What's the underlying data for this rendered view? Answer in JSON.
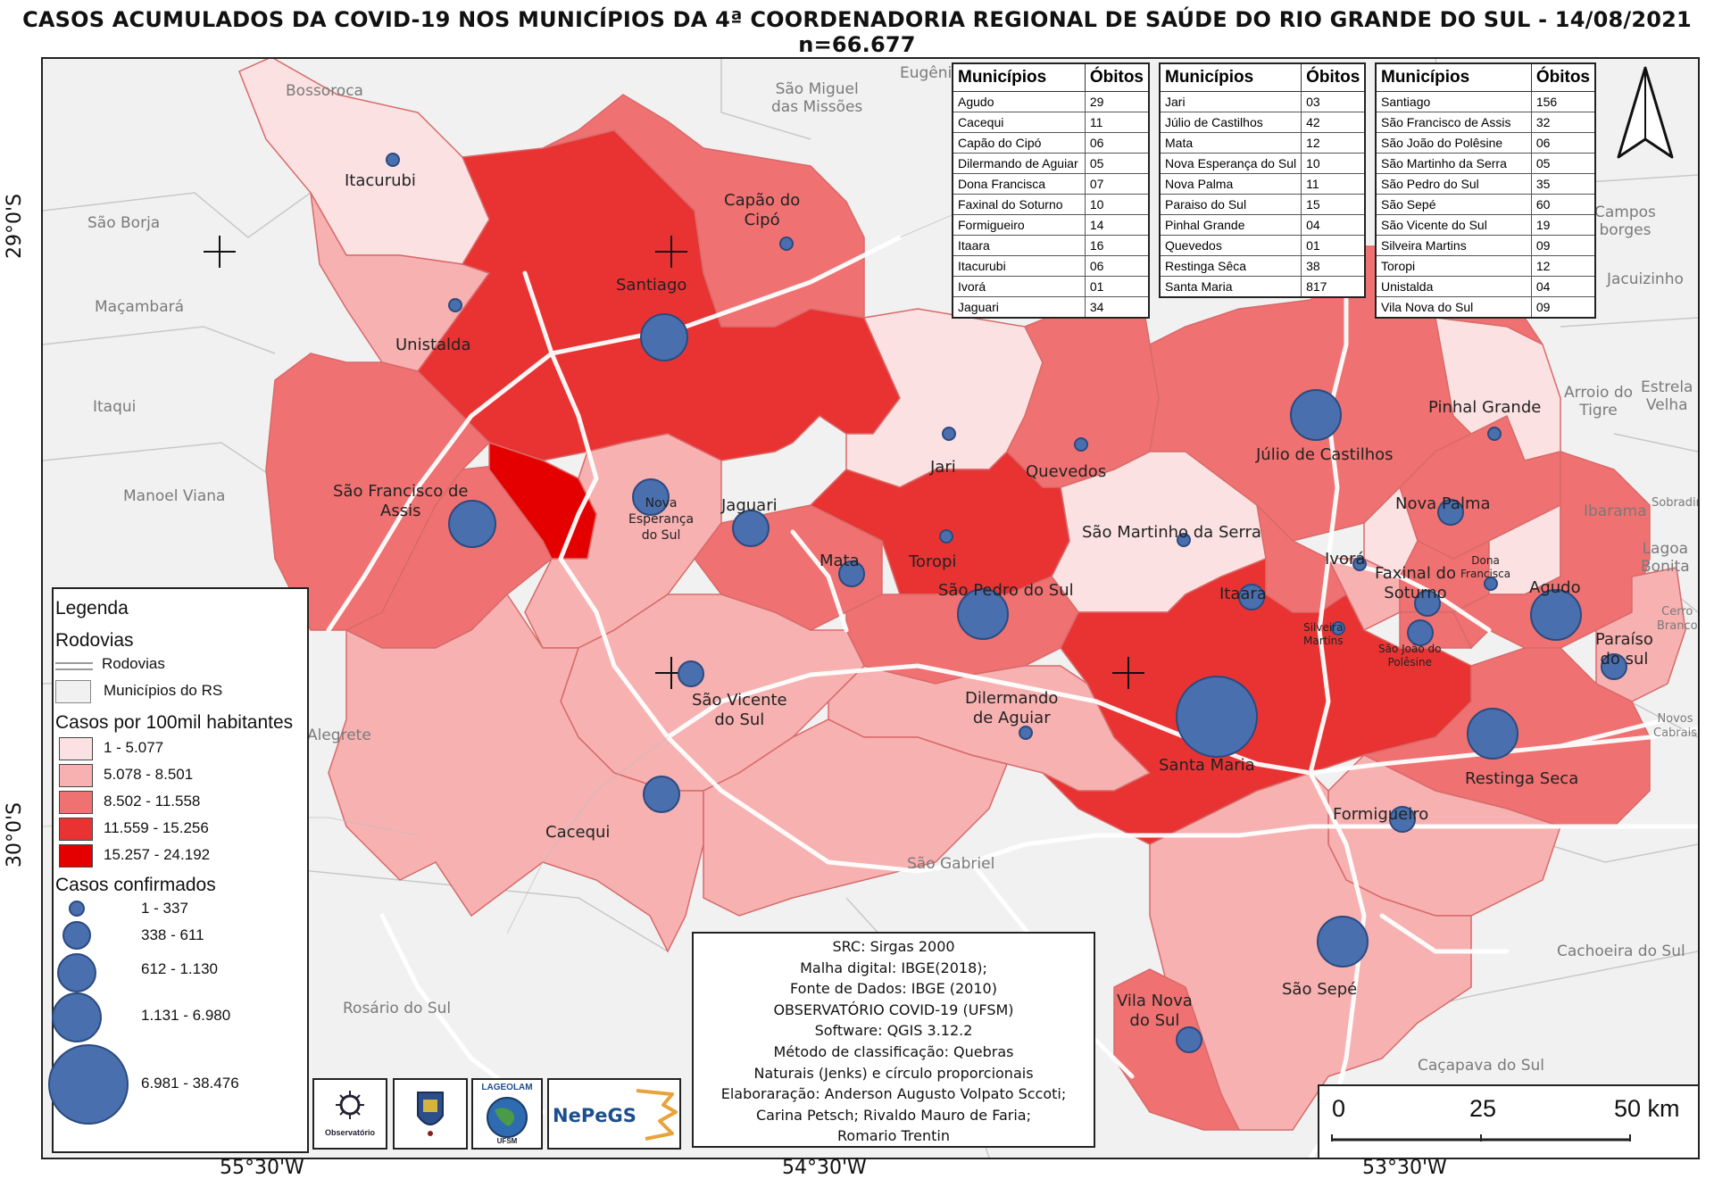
{
  "title": "CASOS ACUMULADOS DA COVID-19 NOS MUNICÍPIOS DA 4ª COORDENADORIA REGIONAL DE SAÚDE DO RIO GRANDE DO SUL - 14/08/2021 n=66.677",
  "tables": [
    {
      "header": [
        "Municípios",
        "Óbitos"
      ],
      "rows": [
        [
          "Agudo",
          "29"
        ],
        [
          "Cacequi",
          "11"
        ],
        [
          "Capão do Cipó",
          "06"
        ],
        [
          "Dilermando de Aguiar",
          "05"
        ],
        [
          "Dona Francisca",
          "07"
        ],
        [
          "Faxinal do Soturno",
          "10"
        ],
        [
          "Formigueiro",
          "14"
        ],
        [
          "Itaara",
          "16"
        ],
        [
          "Itacurubi",
          "06"
        ],
        [
          "Ivorá",
          "01"
        ],
        [
          "Jaguari",
          "34"
        ]
      ]
    },
    {
      "header": [
        "Municípios",
        "Óbitos"
      ],
      "rows": [
        [
          "Jari",
          "03"
        ],
        [
          "Júlio de Castilhos",
          "42"
        ],
        [
          "Mata",
          "12"
        ],
        [
          "Nova Esperança do Sul",
          "10"
        ],
        [
          "Nova Palma",
          "11"
        ],
        [
          "Paraiso do Sul",
          "15"
        ],
        [
          "Pinhal Grande",
          "04"
        ],
        [
          "Quevedos",
          "01"
        ],
        [
          "Restinga Sêca",
          "38"
        ],
        [
          "Santa Maria",
          "817"
        ]
      ]
    },
    {
      "header": [
        "Municípios",
        "Óbitos"
      ],
      "rows": [
        [
          "Santiago",
          "156"
        ],
        [
          "São Francisco de Assis",
          "32"
        ],
        [
          "São João do Polêsine",
          "06"
        ],
        [
          "São Martinho da Serra",
          "05"
        ],
        [
          "São Pedro do Sul",
          "35"
        ],
        [
          "São Sepé",
          "60"
        ],
        [
          "São Vicente do Sul",
          "19"
        ],
        [
          "Silveira Martins",
          "09"
        ],
        [
          "Toropi",
          "12"
        ],
        [
          "Unistalda",
          "04"
        ],
        [
          "Vila Nova do Sul",
          "09"
        ]
      ]
    }
  ],
  "legend": {
    "title": "Legenda",
    "roads_heading": "Rodovias",
    "roads_item": "Rodovias",
    "municipalities_item": "Municípios do RS",
    "rate_heading": "Casos por 100mil habitantes",
    "rate_classes": [
      {
        "label": "1 - 5.077",
        "color": "#fbe1e1"
      },
      {
        "label": "5.078 - 8.501",
        "color": "#f7b1b1"
      },
      {
        "label": "8.502 - 11.558",
        "color": "#f07171"
      },
      {
        "label": "11.559 - 15.256",
        "color": "#e93333"
      },
      {
        "label": "15.257 - 24.192",
        "color": "#e50000"
      }
    ],
    "cases_heading": "Casos confirmados",
    "case_classes": [
      "1 - 337",
      "338 - 611",
      "612 - 1.130",
      "1.131 - 6.980",
      "6.981 - 38.476"
    ]
  },
  "info": [
    "SRC: Sirgas 2000",
    "Malha digital: IBGE(2018);",
    "Fonte de Dados: IBGE (2010)",
    "OBSERVATÓRIO COVID-19 (UFSM)",
    "Software: QGIS 3.12.2",
    "Método de classificação: Quebras",
    "Naturais (Jenks) e círculo proporcionais",
    "Elaboraração: Anderson Augusto Volpato Sccoti;",
    "Carina Petsch; Rivaldo Mauro de Faria;",
    "Romario Trentin"
  ],
  "scale": {
    "labels": [
      "0",
      "25",
      "50 km"
    ]
  },
  "coords": {
    "lat": [
      "29°0'S",
      "30°0'S"
    ],
    "lon": [
      "55°30'W",
      "54°30'W",
      "53°30'W"
    ]
  },
  "logos": {
    "obs": "Observatório",
    "nepegs": "NePeGS",
    "lageolam": "LAGEOLAM",
    "ufsm": "UFSM"
  },
  "municipalities": [
    {
      "key": "itacurubi",
      "name": "Itacurubi"
    },
    {
      "key": "capao",
      "name": "Capão do\nCipó"
    },
    {
      "key": "santiago",
      "name": "Santiago"
    },
    {
      "key": "unistalda",
      "name": "Unistalda"
    },
    {
      "key": "sfa",
      "name": "São Francisco de\nAssis"
    },
    {
      "key": "nes",
      "name": "Nova\nEsperança\ndo Sul"
    },
    {
      "key": "jaguari",
      "name": "Jaguari"
    },
    {
      "key": "jari",
      "name": "Jari"
    },
    {
      "key": "quevedos",
      "name": "Quevedos"
    },
    {
      "key": "julio",
      "name": "Júlio de Castilhos"
    },
    {
      "key": "pinhal",
      "name": "Pinhal Grande"
    },
    {
      "key": "novapalma",
      "name": "Nova Palma"
    },
    {
      "key": "smserra",
      "name": "São Martinho da Serra"
    },
    {
      "key": "mata",
      "name": "Mata"
    },
    {
      "key": "toropi",
      "name": "Toropi"
    },
    {
      "key": "spedro",
      "name": "São Pedro do Sul"
    },
    {
      "key": "ivora",
      "name": "Ivorá"
    },
    {
      "key": "faxinal",
      "name": "Faxinal do\nSoturno"
    },
    {
      "key": "dona",
      "name": "Dona\nFrancisca"
    },
    {
      "key": "agudo",
      "name": "Agudo"
    },
    {
      "key": "itaara",
      "name": "Itaara"
    },
    {
      "key": "silveira",
      "name": "Silveira\nMartins"
    },
    {
      "key": "sjoao",
      "name": "São João do\nPolêsine"
    },
    {
      "key": "paraiso",
      "name": "Paraíso\ndo sul"
    },
    {
      "key": "svicente",
      "name": "São Vicente\ndo Sul"
    },
    {
      "key": "dilermando",
      "name": "Dilermando\nde Aguiar"
    },
    {
      "key": "santamaria",
      "name": "Santa Maria"
    },
    {
      "key": "restinga",
      "name": "Restinga Seca"
    },
    {
      "key": "cacequi",
      "name": "Cacequi"
    },
    {
      "key": "formigueiro",
      "name": "Formigueiro"
    },
    {
      "key": "ssepe",
      "name": "São Sepé"
    },
    {
      "key": "vilanova",
      "name": "Vila Nova\ndo Sul"
    }
  ],
  "context_places": [
    {
      "key": "bossoroca",
      "name": "Bossoroca"
    },
    {
      "key": "smissoes",
      "name": "São Miguel\ndas Missões"
    },
    {
      "key": "eugenio",
      "name": "Eugênio"
    },
    {
      "key": "sborja",
      "name": "São Borja"
    },
    {
      "key": "macambara",
      "name": "Maçambará"
    },
    {
      "key": "itaqui",
      "name": "Itaqui"
    },
    {
      "key": "manoel",
      "name": "Manoel Viana"
    },
    {
      "key": "alegrete",
      "name": "Alegrete"
    },
    {
      "key": "sgabriel",
      "name": "São Gabriel"
    },
    {
      "key": "rosario",
      "name": "Rosário do Sul"
    },
    {
      "key": "cachoeira",
      "name": "Cachoeira do Sul"
    },
    {
      "key": "cacapava",
      "name": "Caçapava do Sul"
    },
    {
      "key": "camposborges",
      "name": "Campos\nborges"
    },
    {
      "key": "jacuizinho",
      "name": "Jacuizinho"
    },
    {
      "key": "arroio",
      "name": "Arroio do\nTigre"
    },
    {
      "key": "estrela",
      "name": "Estrela\nVelha"
    },
    {
      "key": "ibarama",
      "name": "Ibarama"
    },
    {
      "key": "sbarbara",
      "name": "Sobradinho"
    },
    {
      "key": "lagoa",
      "name": "Lagoa\nBonita"
    },
    {
      "key": "cerro",
      "name": "Cerro\nBranco"
    },
    {
      "key": "novoscabrais",
      "name": "Novos\nCabrais"
    }
  ]
}
